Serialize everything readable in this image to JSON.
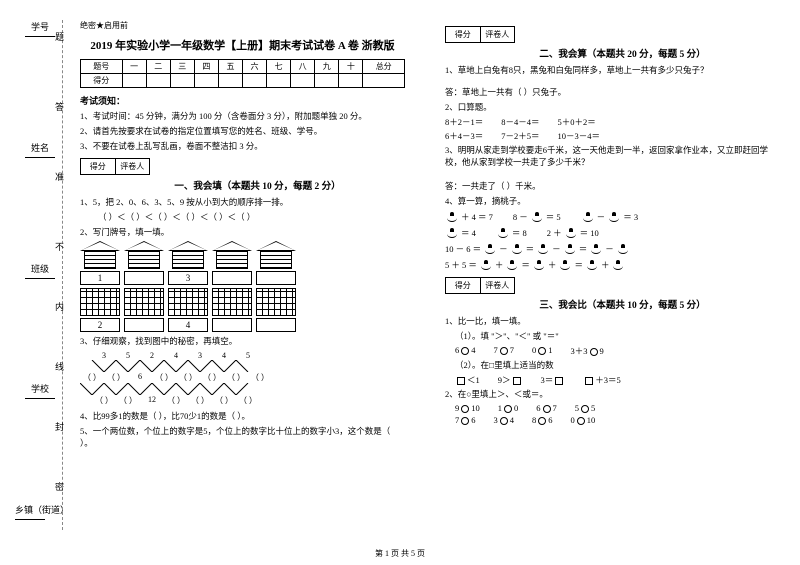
{
  "side": {
    "labels": [
      "学号",
      "姓名",
      "班级",
      "学校",
      "乡镇（街道）"
    ],
    "vchars": [
      "题",
      "答",
      "准",
      "不",
      "内",
      "线",
      "封",
      "密"
    ]
  },
  "confidential": "绝密★启用前",
  "title": "2019 年实验小学一年级数学【上册】期末考试试卷 A 卷 浙教版",
  "header_cols": [
    "题号",
    "一",
    "二",
    "三",
    "四",
    "五",
    "六",
    "七",
    "八",
    "九",
    "十",
    "总分"
  ],
  "header_row2": "得分",
  "exam_notice_h": "考试须知：",
  "exam_notice": [
    "1、考试时间：45 分钟，满分为 100 分（含卷面分 3 分），附加题单独 20 分。",
    "2、请首先按要求在试卷的指定位置填写您的姓名、班级、学号。",
    "3、不要在试卷上乱写乱画，卷面不整洁扣 3 分。"
  ],
  "scorebox": [
    "得分",
    "评卷人"
  ],
  "sec1_title": "一、我会填（本题共 10 分，每题 2 分）",
  "sec1_q1": "1、5，把 2、0、6、3、5、9 按从小到大的顺序排一排。",
  "sec1_q1_line": "（    ）＜（    ）＜（    ）＜（    ）＜（    ）＜（    ）",
  "sec1_q2": "2、写门牌号，填一填。",
  "house_nums": [
    "1",
    "",
    "3",
    "",
    ""
  ],
  "bldg_nums": [
    "2",
    "",
    "4",
    "",
    ""
  ],
  "sec1_q3": "3、仔细观察，找到图中的秘密，再填空。",
  "zigzag_top": [
    "3",
    "5",
    "2",
    "4",
    "3",
    "4",
    "5"
  ],
  "zigzag_mid": [
    "（  ）",
    "（  ）",
    "6",
    "（  ）",
    "（  ）",
    "（  ）",
    "（  ）",
    "（  ）"
  ],
  "zigzag_bot": [
    "（  ）",
    "（  ）",
    "12",
    "（  ）",
    "（  ）",
    "（  ）",
    "（  ）"
  ],
  "sec1_q4": "4、比99多1的数是（    ），比70少1的数是（    ）。",
  "sec1_q5": "5、一个两位数，个位上的数字是5，个位上的数字比十位上的数字小3，这个数是（    ）。",
  "sec2_title": "二、我会算（本题共 20 分，每题 5 分）",
  "sec2_q1": "1、草地上白兔有8只，黑兔和白兔同样多，草地上一共有多少只兔子？",
  "sec2_ans": "答：草地上一共有（    ）只兔子。",
  "sec2_q2": "2、口算题。",
  "calc_rows": [
    [
      "8＋2－1＝",
      "8－4－4＝",
      "5＋0＋2＝"
    ],
    [
      "6＋4－3＝",
      "7－2＋5＝",
      "10－3－4＝"
    ]
  ],
  "sec2_q3": "3、明明从家走到学校要走6千米，这一天他走到一半，返回家拿作业本，又立即赶回学校，他从家到学校一共走了多少千米？",
  "sec2_ans3": "答：一共走了（    ）千米。",
  "sec2_q4": "4、算一算，摘桃子。",
  "peach_rows": [
    [
      "_ ＋ 4 ＝ 7",
      "8 － _ ＝ 5",
      "_ － _ ＝ 3"
    ],
    [
      "_ ＝ 4",
      "_ ＝ 8",
      "2 ＋ _ ＝ 10"
    ],
    [
      "10 － 6 ＝ _ － _ ＝ _ － _ ＝ _ － _",
      "",
      ""
    ],
    [
      "5 ＋ 5 ＝ _ ＋ _ ＝ _ ＋ _ ＝ _ ＋ _",
      "",
      ""
    ]
  ],
  "sec3_title": "三、我会比（本题共 10 分，每题 5 分）",
  "sec3_q1": "1、比一比，填一填。",
  "sec3_sub1": "（1）。填 \"＞\"、\"＜\" 或 \"＝\"",
  "compare1": [
    "6○4",
    "7○7",
    "0○1",
    "3＋3○9"
  ],
  "sec3_sub2": "（2）。在□里填上适当的数",
  "compare2": [
    "□＜1",
    "9＞□",
    "3＝□",
    "□＋3＝5"
  ],
  "sec3_q2": "2、在○里填上＞、＜或＝。",
  "compare3": [
    "9○10",
    "1○0",
    "6○7",
    "5○5"
  ],
  "compare4": [
    "7○6",
    "3○4",
    "8○6",
    "0○10"
  ],
  "footer": "第 1 页 共 5 页"
}
